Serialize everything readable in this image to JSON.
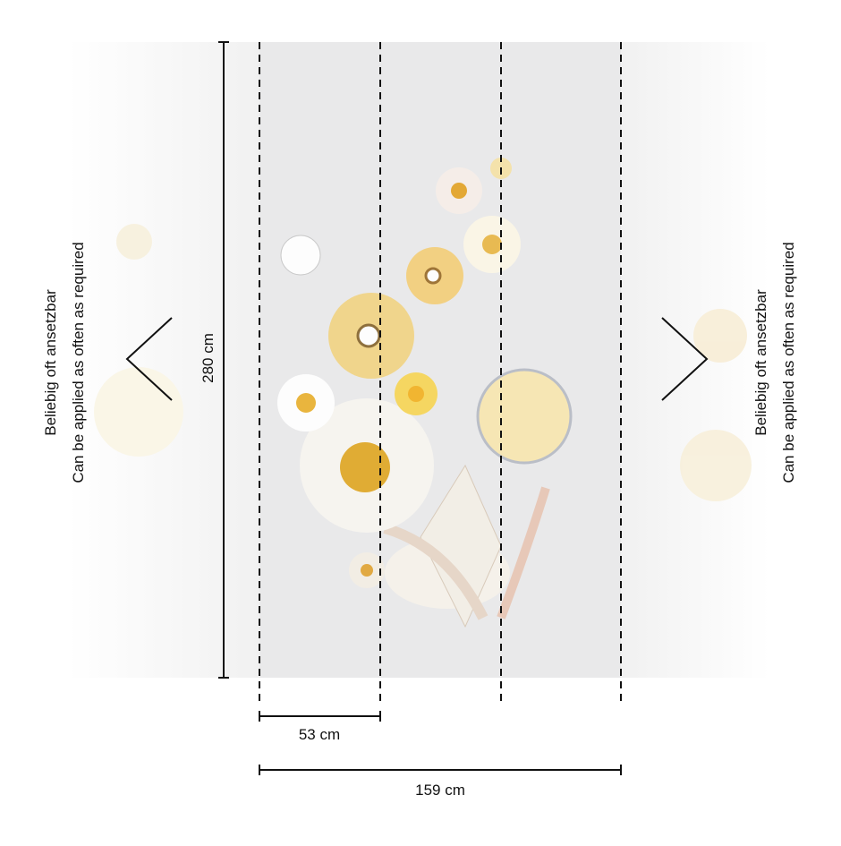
{
  "dimensions": {
    "height": "280 cm",
    "panel_width": "53 cm",
    "total_width": "159 cm"
  },
  "left_note": {
    "line1": "Beliebig oft ansetzbar",
    "line2": "Can be applied as often as required"
  },
  "right_note": {
    "line1": "Beliebig oft ansetzbar",
    "line2": "Can be applied as often as required"
  }
}
